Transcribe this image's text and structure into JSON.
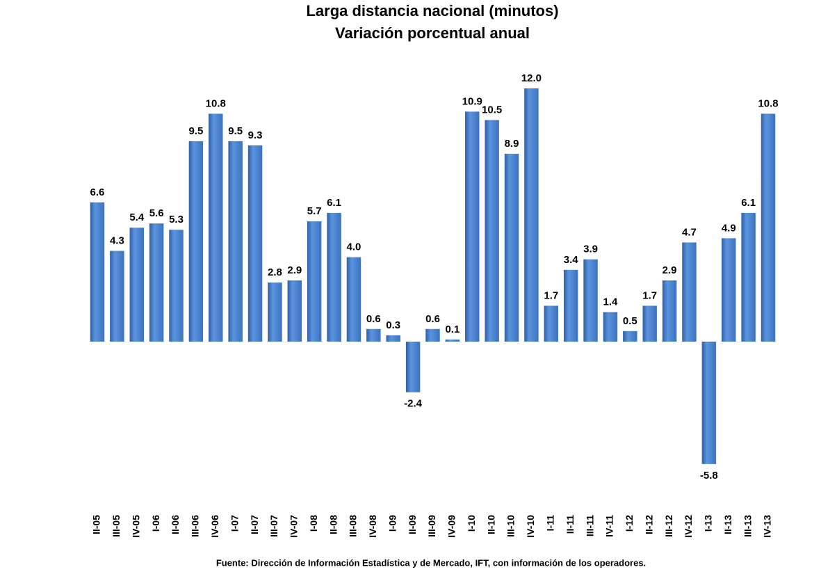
{
  "chart_data": {
    "type": "bar",
    "title": "Larga distancia nacional (minutos)",
    "subtitle": "Variación porcentual anual",
    "source": "Fuente: Dirección de Información Estadística y de Mercado, IFT, con información de los operadores.",
    "categories": [
      "II-05",
      "III-05",
      "IV-05",
      "I-06",
      "II-06",
      "III-06",
      "IV-06",
      "I-07",
      "II-07",
      "III-07",
      "IV-07",
      "I-08",
      "II-08",
      "III-08",
      "IV-08",
      "I-09",
      "II-09",
      "III-09",
      "IV-09",
      "I-10",
      "II-10",
      "III-10",
      "IV-10",
      "I-11",
      "II-11",
      "III-11",
      "IV-11",
      "I-12",
      "II-12",
      "III-12",
      "IV-12",
      "I-13",
      "II-13",
      "III-13",
      "IV-13"
    ],
    "values": [
      6.6,
      4.3,
      5.4,
      5.6,
      5.3,
      9.5,
      10.8,
      9.5,
      9.3,
      2.8,
      2.9,
      5.7,
      6.1,
      4.0,
      0.6,
      0.3,
      -2.4,
      0.6,
      0.1,
      10.9,
      10.5,
      8.9,
      12.0,
      1.7,
      3.4,
      3.9,
      1.4,
      0.5,
      1.7,
      2.9,
      4.7,
      -5.8,
      4.9,
      6.1,
      10.8
    ],
    "value_labels": [
      "6.6",
      "4.3",
      "5.4",
      "5.6",
      "5.3",
      "9.5",
      "10.8",
      "9.5",
      "9.3",
      "2.8",
      "2.9",
      "5.7",
      "6.1",
      "4.0",
      "0.6",
      "0.3",
      "-2.4",
      "0.6",
      "0.1",
      "10.9",
      "10.5",
      "8.9",
      "12.0",
      "1.7",
      "3.4",
      "3.9",
      "1.4",
      "0.5",
      "1.7",
      "2.9",
      "4.7",
      "-5.8",
      "4.9",
      "6.1",
      "10.8"
    ],
    "color": "#4a86d4",
    "ylim": [
      -8,
      14
    ]
  }
}
